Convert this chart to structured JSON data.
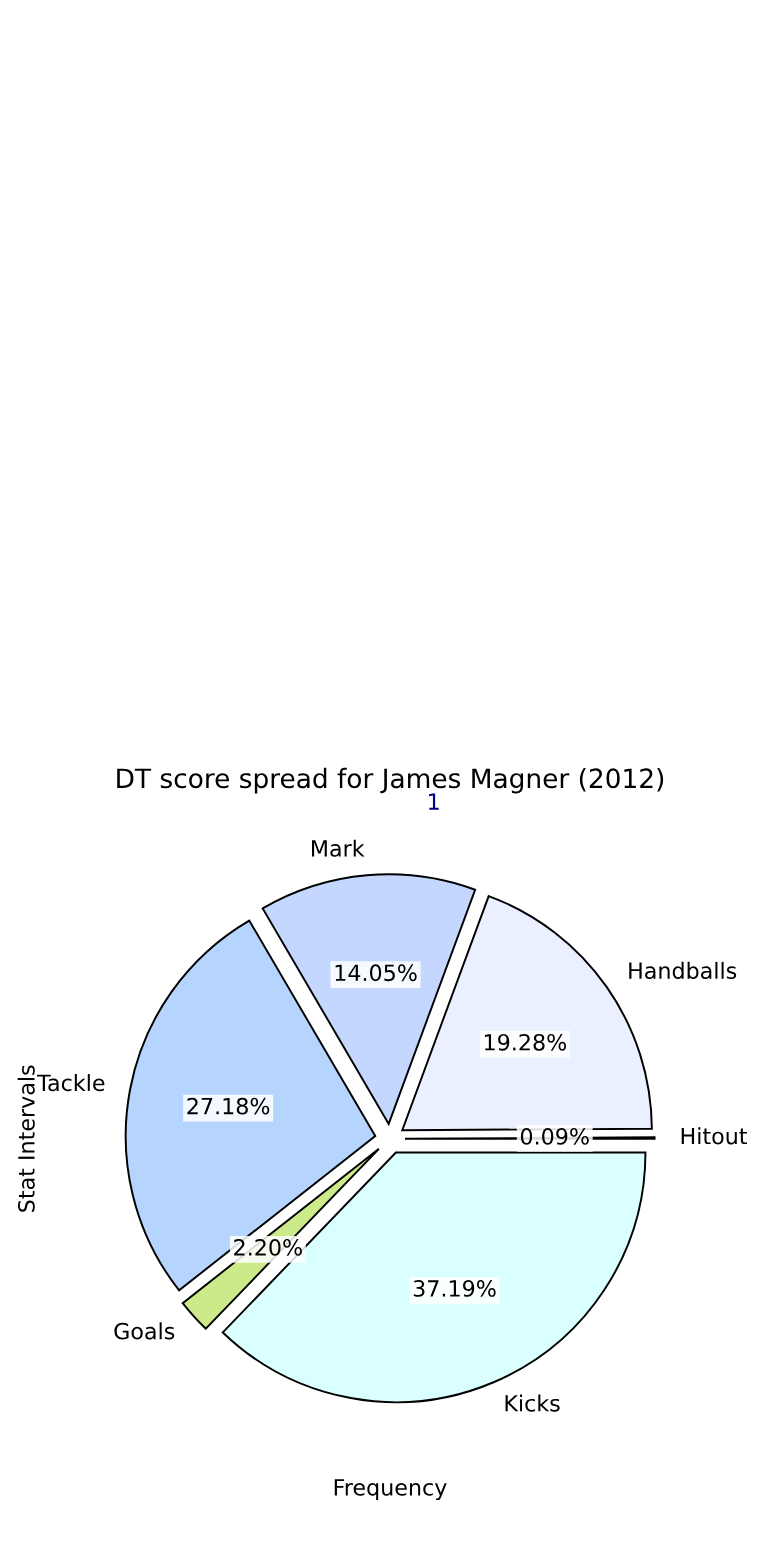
{
  "chart_data": {
    "type": "pie",
    "title": "DT score spread for James Magner (2012)",
    "xlabel": "Frequency",
    "ylabel": "Stat Intervals",
    "categories": [
      "Hitout",
      "Handballs",
      "Mark",
      "Tackle",
      "Goals",
      "Kicks"
    ],
    "values": [
      0.09,
      19.28,
      14.05,
      27.18,
      2.2,
      37.19
    ],
    "value_labels": [
      "0.09%",
      "19.28%",
      "14.05%",
      "27.18%",
      "2.20%",
      "37.19%"
    ],
    "colors": [
      "#333333",
      "#eaf0ff",
      "#c4d8ff",
      "#b5d5ff",
      "#cdea8a",
      "#d9ffff"
    ],
    "annotations": [
      "1"
    ]
  }
}
